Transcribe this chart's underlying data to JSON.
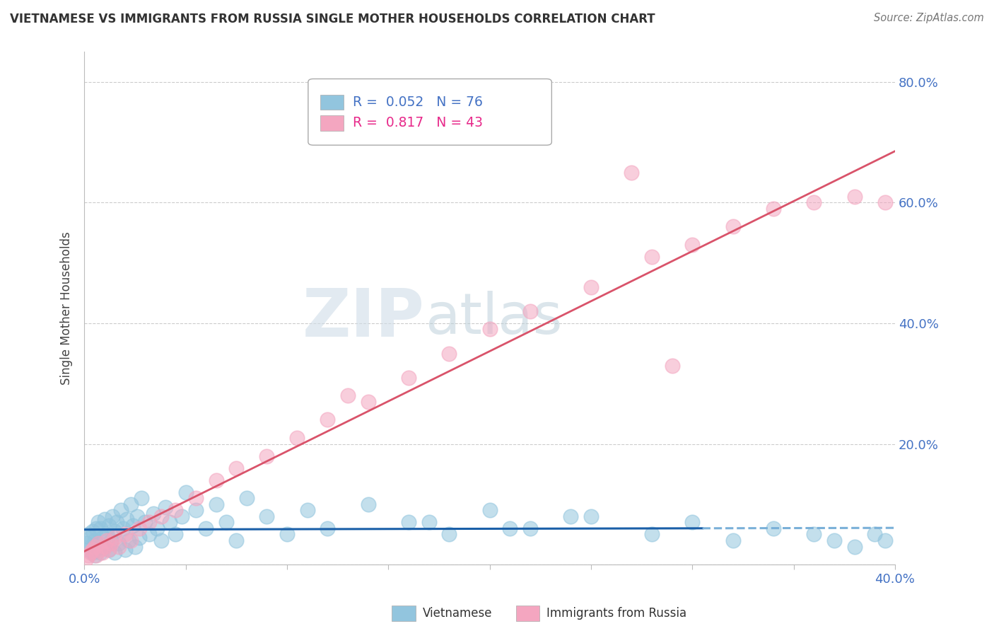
{
  "title": "VIETNAMESE VS IMMIGRANTS FROM RUSSIA SINGLE MOTHER HOUSEHOLDS CORRELATION CHART",
  "source": "Source: ZipAtlas.com",
  "ylabel": "Single Mother Households",
  "legend_label_1": "Vietnamese",
  "legend_label_2": "Immigrants from Russia",
  "r1": 0.052,
  "n1": 76,
  "r2": 0.817,
  "n2": 43,
  "color1": "#92c5de",
  "color2": "#f4a6c0",
  "line_color1_solid": "#1a5fa8",
  "line_color1_dash": "#7ab0d8",
  "line_color2": "#d9536a",
  "xlim": [
    0.0,
    0.4
  ],
  "ylim": [
    0.0,
    0.85
  ],
  "watermark_zip": "ZIP",
  "watermark_atlas": "atlas",
  "viet_x": [
    0.001,
    0.002,
    0.002,
    0.003,
    0.003,
    0.004,
    0.004,
    0.005,
    0.005,
    0.006,
    0.006,
    0.007,
    0.007,
    0.008,
    0.008,
    0.009,
    0.01,
    0.01,
    0.011,
    0.012,
    0.012,
    0.013,
    0.014,
    0.015,
    0.015,
    0.016,
    0.017,
    0.018,
    0.019,
    0.02,
    0.021,
    0.022,
    0.023,
    0.024,
    0.025,
    0.026,
    0.027,
    0.028,
    0.03,
    0.032,
    0.034,
    0.036,
    0.038,
    0.04,
    0.042,
    0.045,
    0.048,
    0.05,
    0.055,
    0.06,
    0.065,
    0.07,
    0.075,
    0.08,
    0.09,
    0.1,
    0.11,
    0.12,
    0.14,
    0.16,
    0.18,
    0.2,
    0.22,
    0.25,
    0.28,
    0.3,
    0.32,
    0.34,
    0.36,
    0.37,
    0.38,
    0.39,
    0.395,
    0.17,
    0.21,
    0.24
  ],
  "viet_y": [
    0.035,
    0.025,
    0.05,
    0.03,
    0.045,
    0.02,
    0.055,
    0.015,
    0.04,
    0.06,
    0.025,
    0.07,
    0.035,
    0.02,
    0.06,
    0.045,
    0.03,
    0.075,
    0.05,
    0.025,
    0.065,
    0.04,
    0.08,
    0.055,
    0.02,
    0.07,
    0.035,
    0.09,
    0.06,
    0.025,
    0.075,
    0.04,
    0.1,
    0.065,
    0.03,
    0.08,
    0.045,
    0.11,
    0.07,
    0.05,
    0.085,
    0.06,
    0.04,
    0.095,
    0.07,
    0.05,
    0.08,
    0.12,
    0.09,
    0.06,
    0.1,
    0.07,
    0.04,
    0.11,
    0.08,
    0.05,
    0.09,
    0.06,
    0.1,
    0.07,
    0.05,
    0.09,
    0.06,
    0.08,
    0.05,
    0.07,
    0.04,
    0.06,
    0.05,
    0.04,
    0.03,
    0.05,
    0.04,
    0.07,
    0.06,
    0.08
  ],
  "russia_x": [
    0.001,
    0.002,
    0.003,
    0.004,
    0.005,
    0.006,
    0.007,
    0.008,
    0.009,
    0.01,
    0.011,
    0.012,
    0.013,
    0.015,
    0.017,
    0.02,
    0.023,
    0.027,
    0.032,
    0.038,
    0.045,
    0.055,
    0.065,
    0.075,
    0.09,
    0.105,
    0.12,
    0.14,
    0.16,
    0.18,
    0.2,
    0.22,
    0.25,
    0.28,
    0.3,
    0.32,
    0.34,
    0.36,
    0.38,
    0.395,
    0.27,
    0.13,
    0.29
  ],
  "russia_y": [
    0.01,
    0.015,
    0.02,
    0.025,
    0.03,
    0.015,
    0.035,
    0.025,
    0.02,
    0.03,
    0.04,
    0.025,
    0.035,
    0.045,
    0.03,
    0.05,
    0.04,
    0.06,
    0.07,
    0.08,
    0.09,
    0.11,
    0.14,
    0.16,
    0.18,
    0.21,
    0.24,
    0.27,
    0.31,
    0.35,
    0.39,
    0.42,
    0.46,
    0.51,
    0.53,
    0.56,
    0.59,
    0.6,
    0.61,
    0.6,
    0.65,
    0.28,
    0.33
  ]
}
